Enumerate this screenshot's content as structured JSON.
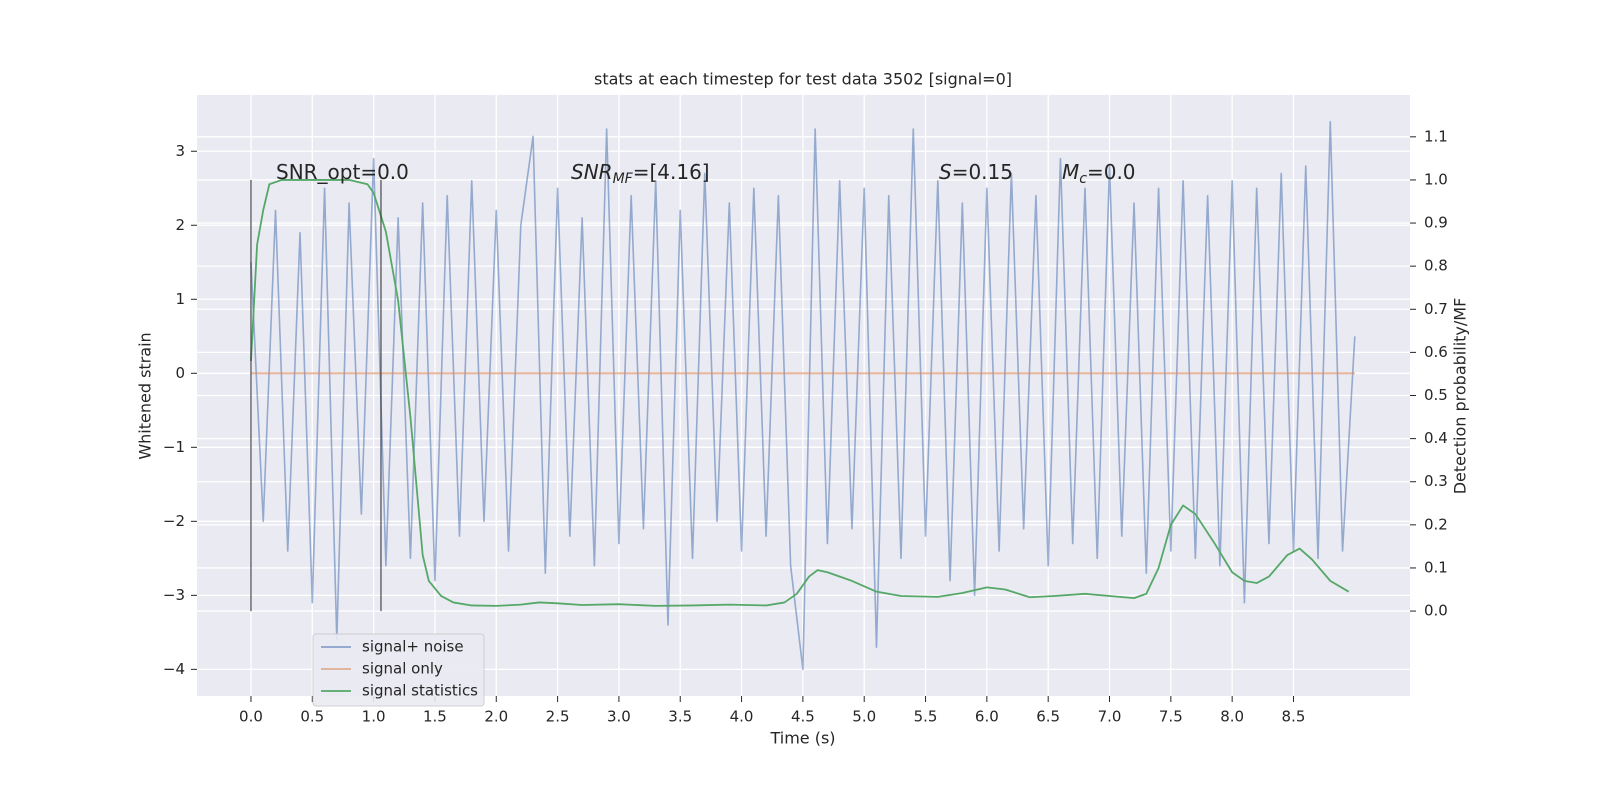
{
  "chart_data": {
    "type": "line",
    "title": "stats at each timestep for test data 3502 [signal=0]",
    "xlabel": "Time (s)",
    "ylabel": "Whitened strain",
    "y2label": "Detection probability/MF",
    "xlim": [
      -0.44,
      9.45
    ],
    "ylim": [
      -4.36,
      3.76
    ],
    "y2lim": [
      -0.197,
      1.197
    ],
    "xticks": [
      {
        "value": 0,
        "label": "0.0"
      },
      0.5,
      {
        "value": 1,
        "label": "1.0"
      },
      1.5,
      {
        "value": 2,
        "label": "2.0"
      },
      2.5,
      {
        "value": 3,
        "label": "3.0"
      },
      3.5,
      {
        "value": 4,
        "label": "4.0"
      },
      4.5,
      {
        "value": 5,
        "label": "5.0"
      },
      5.5,
      {
        "value": 6,
        "label": "6.0"
      },
      6.5,
      {
        "value": 7,
        "label": "7.0"
      },
      7.5,
      {
        "value": 8,
        "label": "8.0"
      },
      8.5
    ],
    "yticks": [
      {
        "value": -4,
        "label": "−4"
      },
      {
        "value": -3,
        "label": "−3"
      },
      {
        "value": -2,
        "label": "−2"
      },
      {
        "value": -1,
        "label": "−1"
      },
      0,
      1,
      2,
      3
    ],
    "y2ticks": [
      {
        "value": 0,
        "label": "0.0"
      },
      0.1,
      0.2,
      0.3,
      0.4,
      0.5,
      0.6,
      0.7,
      0.8,
      0.9,
      {
        "value": 1,
        "label": "1.0"
      },
      1.1
    ],
    "grid": true,
    "legend": "lower left",
    "series": [
      {
        "name": "signal+ noise",
        "color": "#4c72b0",
        "axis": "y",
        "x": [
          0,
          0.1,
          0.2,
          0.3,
          0.4,
          0.5,
          0.6,
          0.7,
          0.8,
          0.9,
          1,
          1.1,
          1.2,
          1.3,
          1.4,
          1.5,
          1.6,
          1.7,
          1.8,
          1.9,
          2,
          2.1,
          2.2,
          2.3,
          2.4,
          2.5,
          2.6,
          2.7,
          2.8,
          2.9,
          3,
          3.1,
          3.2,
          3.3,
          3.4,
          3.5,
          3.6,
          3.7,
          3.8,
          3.9,
          4,
          4.1,
          4.2,
          4.3,
          4.4,
          4.5,
          4.6,
          4.7,
          4.8,
          4.9,
          5,
          5.1,
          5.2,
          5.3,
          5.4,
          5.5,
          5.6,
          5.7,
          5.8,
          5.9,
          6,
          6.1,
          6.2,
          6.3,
          6.4,
          6.5,
          6.6,
          6.7,
          6.8,
          6.9,
          7,
          7.1,
          7.2,
          7.3,
          7.4,
          7.5,
          7.6,
          7.7,
          7.8,
          7.9,
          8,
          8.1,
          8.2,
          8.3,
          8.4,
          8.5,
          8.6,
          8.7,
          8.8,
          8.9,
          9
        ],
        "values": [
          1.5,
          -2.0,
          2.2,
          -2.4,
          1.9,
          -3.1,
          2.5,
          -3.6,
          2.3,
          -1.9,
          2.9,
          -2.6,
          2.1,
          -2.5,
          2.3,
          -2.8,
          2.4,
          -2.2,
          2.6,
          -2.0,
          2.2,
          -2.4,
          2.0,
          3.2,
          -2.7,
          2.5,
          -2.2,
          2.1,
          -2.6,
          3.3,
          -2.3,
          2.4,
          -2.1,
          2.6,
          -3.4,
          2.2,
          -2.5,
          2.7,
          -2.0,
          2.3,
          -2.4,
          2.5,
          -2.2,
          2.4,
          -2.6,
          -4.0,
          3.3,
          -2.3,
          2.6,
          -2.1,
          2.5,
          -3.7,
          2.4,
          -2.5,
          3.3,
          -2.2,
          2.6,
          -2.8,
          2.3,
          -3.0,
          2.5,
          -2.4,
          2.7,
          -2.1,
          2.4,
          -2.6,
          2.9,
          -2.3,
          2.5,
          -2.5,
          2.8,
          -2.2,
          2.3,
          -2.7,
          2.5,
          -2.4,
          2.6,
          -2.5,
          2.4,
          -2.6,
          2.6,
          -3.1,
          2.5,
          -2.3,
          2.7,
          -2.4,
          2.8,
          -2.5,
          3.4,
          -2.4,
          0.5
        ]
      },
      {
        "name": "signal only",
        "color": "#dd8452",
        "axis": "y",
        "x": [
          0,
          9
        ],
        "values": [
          0,
          0
        ]
      },
      {
        "name": "signal statistics",
        "color": "#55a868",
        "axis": "y2",
        "x": [
          0,
          0.05,
          0.1,
          0.15,
          0.25,
          0.5,
          0.8,
          0.95,
          1.0,
          1.1,
          1.2,
          1.3,
          1.4,
          1.45,
          1.55,
          1.65,
          1.8,
          2.0,
          2.2,
          2.35,
          2.5,
          2.7,
          3.0,
          3.3,
          3.6,
          3.9,
          4.2,
          4.35,
          4.45,
          4.55,
          4.62,
          4.7,
          4.9,
          5.1,
          5.3,
          5.6,
          5.8,
          6.0,
          6.15,
          6.35,
          6.55,
          6.8,
          7.0,
          7.2,
          7.3,
          7.4,
          7.5,
          7.6,
          7.7,
          7.85,
          8.0,
          8.1,
          8.2,
          8.3,
          8.45,
          8.55,
          8.65,
          8.8,
          8.95
        ],
        "values": [
          0.58,
          0.85,
          0.93,
          0.99,
          1.0,
          1.0,
          1.0,
          0.99,
          0.97,
          0.88,
          0.72,
          0.45,
          0.13,
          0.07,
          0.035,
          0.02,
          0.013,
          0.012,
          0.015,
          0.02,
          0.018,
          0.014,
          0.016,
          0.012,
          0.013,
          0.015,
          0.013,
          0.02,
          0.04,
          0.08,
          0.095,
          0.09,
          0.07,
          0.045,
          0.035,
          0.033,
          0.042,
          0.055,
          0.05,
          0.032,
          0.035,
          0.04,
          0.035,
          0.03,
          0.04,
          0.1,
          0.2,
          0.245,
          0.225,
          0.16,
          0.09,
          0.07,
          0.065,
          0.08,
          0.13,
          0.145,
          0.12,
          0.07,
          0.045
        ]
      }
    ],
    "vlines": {
      "x": [
        0,
        1.06
      ],
      "y2": [
        0,
        1
      ]
    },
    "annotations": [
      {
        "spans": [
          {
            "text": "SNR_opt=0.0"
          }
        ]
      },
      {
        "spans": [
          {
            "text": "SNR",
            "italic": true
          },
          {
            "text": "MF",
            "italic": true,
            "sub": true
          },
          {
            "text": "=[4.16]"
          }
        ]
      },
      {
        "spans": [
          {
            "text": "S",
            "italic": true
          },
          {
            "text": "=0.15"
          }
        ]
      },
      {
        "spans": [
          {
            "text": "M",
            "italic": true
          },
          {
            "text": "c",
            "italic": true,
            "sub": true
          },
          {
            "text": "=0.0"
          }
        ]
      }
    ]
  }
}
